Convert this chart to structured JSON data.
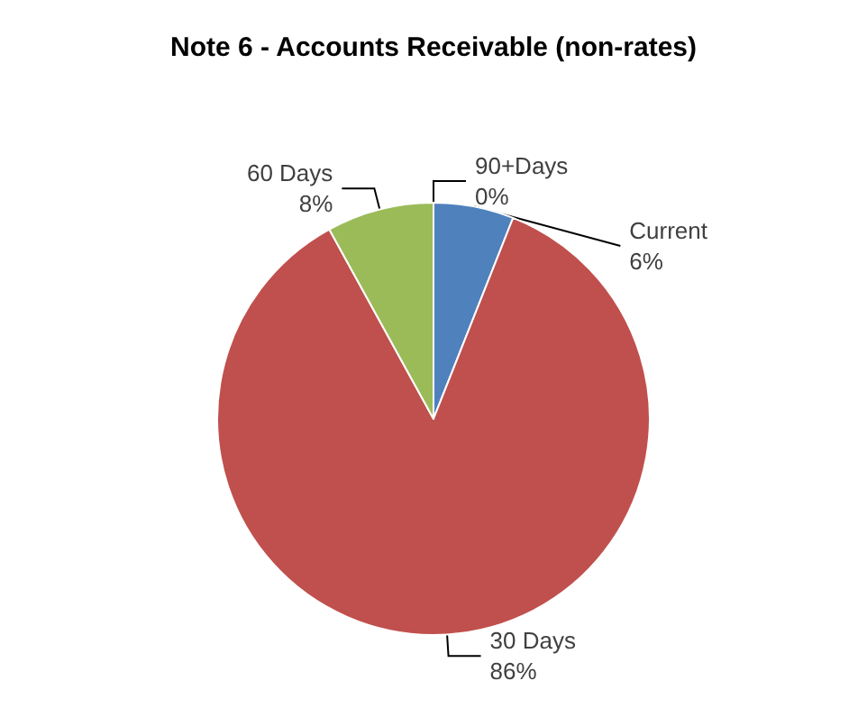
{
  "chart_data": {
    "type": "pie",
    "title": "Note 6 - Accounts Receivable (non-rates)",
    "categories": [
      "Current",
      "30 Days",
      "60 Days",
      "90+Days"
    ],
    "values": [
      6,
      86,
      8,
      0
    ],
    "colors": [
      "#4f81bd",
      "#c0504d",
      "#9bbb59",
      "#8064a2"
    ],
    "value_labels": [
      "6%",
      "86%",
      "8%",
      "0%"
    ],
    "legend": false
  }
}
